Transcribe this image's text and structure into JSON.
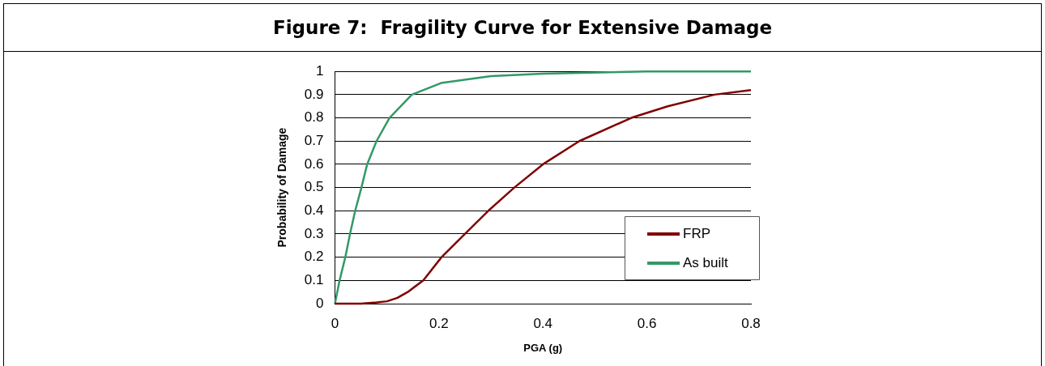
{
  "chart_data": {
    "type": "line",
    "title": "Figure 7:  Fragility Curve for Extensive Damage",
    "xlabel": "PGA (g)",
    "ylabel": "Probability of Damage",
    "xlim": [
      0,
      0.8
    ],
    "xticks": [
      0,
      0.2,
      0.4,
      0.6,
      0.8
    ],
    "ylim": [
      0,
      1
    ],
    "yticks": [
      0,
      0.1,
      0.2,
      0.3,
      0.4,
      0.5,
      0.6,
      0.7,
      0.8,
      0.9,
      1
    ],
    "grid": "y",
    "legend": "bottom right",
    "marker": "none",
    "line_style": "solid",
    "series": [
      {
        "name": "FRP",
        "color": "#800000",
        "x": [
          0,
          0.05,
          0.08,
          0.1,
          0.12,
          0.14,
          0.17,
          0.205,
          0.25,
          0.295,
          0.345,
          0.4,
          0.47,
          0.57,
          0.64,
          0.73,
          0.8
        ],
        "values": [
          0,
          0,
          0.005,
          0.01,
          0.025,
          0.05,
          0.1,
          0.2,
          0.3,
          0.4,
          0.5,
          0.6,
          0.7,
          0.8,
          0.85,
          0.9,
          0.92
        ]
      },
      {
        "name": "As built",
        "color": "#339966",
        "x": [
          0,
          0.009,
          0.02,
          0.029,
          0.039,
          0.051,
          0.062,
          0.08,
          0.105,
          0.148,
          0.204,
          0.3,
          0.4,
          0.6,
          0.8
        ],
        "values": [
          0,
          0.1,
          0.2,
          0.3,
          0.4,
          0.5,
          0.6,
          0.7,
          0.8,
          0.9,
          0.95,
          0.98,
          0.99,
          1,
          1
        ]
      }
    ]
  }
}
